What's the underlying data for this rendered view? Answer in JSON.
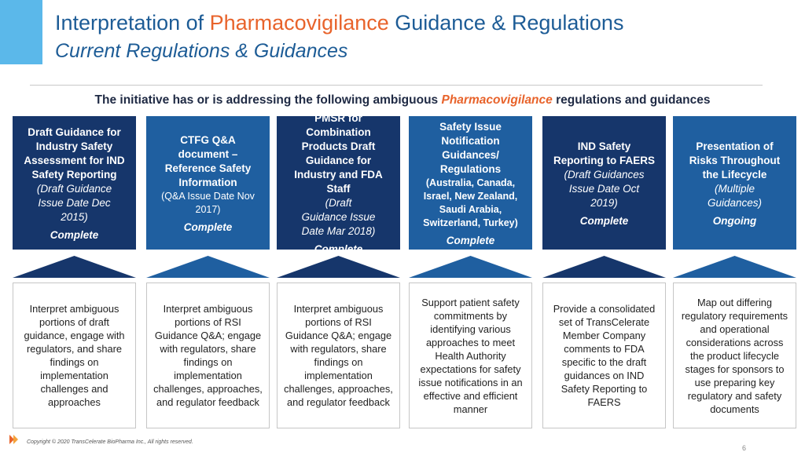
{
  "header": {
    "title_part1": "Interpretation of ",
    "title_highlight": "Pharmacovigilance",
    "title_part2": " Guidance & Regulations",
    "subtitle": "Current Regulations & Guidances"
  },
  "intro": {
    "part1": "The initiative has or is addressing the following ambiguous ",
    "highlight": "Pharmacovigilance",
    "part2": " regulations and guidances"
  },
  "columns": [
    {
      "lines": [
        "Draft Guidance for",
        "Industry Safety",
        "Assessment for IND",
        "Safety Reporting"
      ],
      "sub": [
        "(Draft Guidance",
        "Issue Date Dec",
        "2015)"
      ],
      "status": "Complete",
      "desc": "Interpret ambiguous portions of draft guidance, engage with regulators, and share findings on implementation challenges and approaches"
    },
    {
      "lines": [
        "CTFG Q&A",
        "document –",
        "Reference Safety",
        "Information"
      ],
      "sub": [
        "(Q&A Issue Date Nov",
        "2017)"
      ],
      "status": "Complete",
      "desc": "Interpret ambiguous portions of RSI Guidance Q&A; engage with regulators, share findings on implementation challenges, approaches, and regulator feedback"
    },
    {
      "lines": [
        "PMSR for",
        "Combination",
        "Products Draft",
        "Guidance for",
        "Industry and FDA",
        "Staff"
      ],
      "sub": [
        "(Draft",
        "Guidance Issue",
        "Date Mar 2018)"
      ],
      "status": "Complete",
      "desc": "Interpret ambiguous portions of RSI Guidance Q&A; engage with regulators, share findings on implementation challenges, approaches, and regulator feedback"
    },
    {
      "lines": [
        "Safety Issue",
        "Notification",
        "Guidances/",
        "Regulations"
      ],
      "sub": [
        "(Australia, Canada,",
        "Israel, New Zealand,",
        "Saudi Arabia,",
        "Switzerland, Turkey)"
      ],
      "status": "Complete",
      "desc": "Support patient safety commitments by identifying various approaches to meet Health Authority expectations for safety issue notifications in an effective and efficient manner"
    },
    {
      "lines": [
        "IND Safety",
        "Reporting to FAERS"
      ],
      "sub": [
        "(Draft Guidances",
        "Issue Date Oct",
        "2019)"
      ],
      "status": "Complete",
      "desc": "Provide a consolidated set of TransCelerate Member Company comments to FDA specific to the draft guidances on IND Safety Reporting to FAERS"
    },
    {
      "lines": [
        "Presentation of",
        "Risks Throughout",
        "the Lifecycle"
      ],
      "sub": [
        "(Multiple",
        "Guidances)"
      ],
      "status": "Ongoing",
      "desc": "Map out differing regulatory requirements and operational considerations across the product lifecycle stages for sponsors to use preparing key regulatory and safety documents"
    }
  ],
  "footer": {
    "copyright": "Copyright © 2020 TransCelerate BioPharma Inc., All rights reserved.",
    "page_number": "6"
  },
  "colors": {
    "dark": "#16366b",
    "blue": "#1f5fa0",
    "accent": "#e8632b",
    "title": "#1d5c96"
  }
}
